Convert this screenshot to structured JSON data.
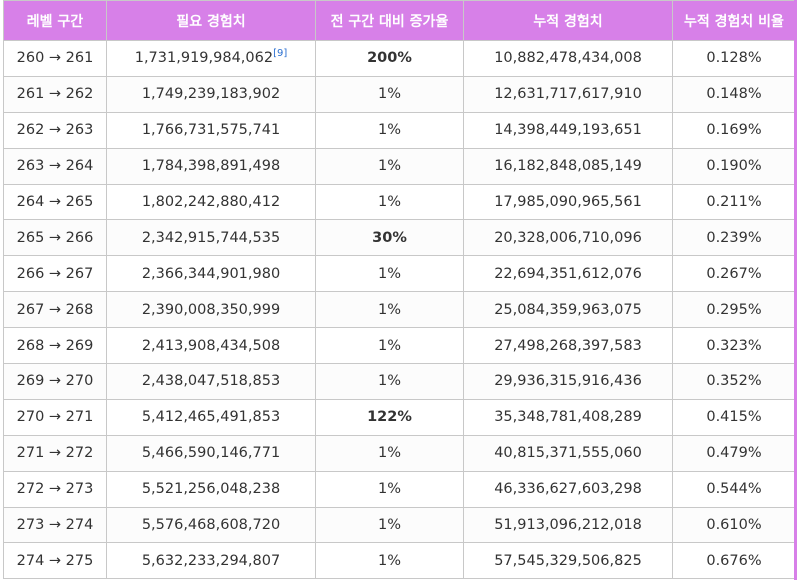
{
  "table": {
    "headers": [
      "레벨 구간",
      "필요 경험치",
      "전 구간 대비 증가율",
      "누적 경험치",
      "누적 경험치 비율"
    ],
    "rows": [
      {
        "range": "260 → 261",
        "required": "1,731,919,984,062",
        "ref": "[9]",
        "increase": "200%",
        "increase_bold": true,
        "cumulative": "10,882,478,434,008",
        "ratio": "0.128%"
      },
      {
        "range": "261 → 262",
        "required": "1,749,239,183,902",
        "ref": "",
        "increase": "1%",
        "increase_bold": false,
        "cumulative": "12,631,717,617,910",
        "ratio": "0.148%"
      },
      {
        "range": "262 → 263",
        "required": "1,766,731,575,741",
        "ref": "",
        "increase": "1%",
        "increase_bold": false,
        "cumulative": "14,398,449,193,651",
        "ratio": "0.169%"
      },
      {
        "range": "263 → 264",
        "required": "1,784,398,891,498",
        "ref": "",
        "increase": "1%",
        "increase_bold": false,
        "cumulative": "16,182,848,085,149",
        "ratio": "0.190%"
      },
      {
        "range": "264 → 265",
        "required": "1,802,242,880,412",
        "ref": "",
        "increase": "1%",
        "increase_bold": false,
        "cumulative": "17,985,090,965,561",
        "ratio": "0.211%"
      },
      {
        "range": "265 → 266",
        "required": "2,342,915,744,535",
        "ref": "",
        "increase": "30%",
        "increase_bold": true,
        "cumulative": "20,328,006,710,096",
        "ratio": "0.239%"
      },
      {
        "range": "266 → 267",
        "required": "2,366,344,901,980",
        "ref": "",
        "increase": "1%",
        "increase_bold": false,
        "cumulative": "22,694,351,612,076",
        "ratio": "0.267%"
      },
      {
        "range": "267 → 268",
        "required": "2,390,008,350,999",
        "ref": "",
        "increase": "1%",
        "increase_bold": false,
        "cumulative": "25,084,359,963,075",
        "ratio": "0.295%"
      },
      {
        "range": "268 → 269",
        "required": "2,413,908,434,508",
        "ref": "",
        "increase": "1%",
        "increase_bold": false,
        "cumulative": "27,498,268,397,583",
        "ratio": "0.323%"
      },
      {
        "range": "269 → 270",
        "required": "2,438,047,518,853",
        "ref": "",
        "increase": "1%",
        "increase_bold": false,
        "cumulative": "29,936,315,916,436",
        "ratio": "0.352%"
      },
      {
        "range": "270 → 271",
        "required": "5,412,465,491,853",
        "ref": "",
        "increase": "122%",
        "increase_bold": true,
        "cumulative": "35,348,781,408,289",
        "ratio": "0.415%"
      },
      {
        "range": "271 → 272",
        "required": "5,466,590,146,771",
        "ref": "",
        "increase": "1%",
        "increase_bold": false,
        "cumulative": "40,815,371,555,060",
        "ratio": "0.479%"
      },
      {
        "range": "272 → 273",
        "required": "5,521,256,048,238",
        "ref": "",
        "increase": "1%",
        "increase_bold": false,
        "cumulative": "46,336,627,603,298",
        "ratio": "0.544%"
      },
      {
        "range": "273 → 274",
        "required": "5,576,468,608,720",
        "ref": "",
        "increase": "1%",
        "increase_bold": false,
        "cumulative": "51,913,096,212,018",
        "ratio": "0.610%"
      },
      {
        "range": "274 → 275",
        "required": "5,632,233,294,807",
        "ref": "",
        "increase": "1%",
        "increase_bold": false,
        "cumulative": "57,545,329,506,825",
        "ratio": "0.676%"
      }
    ]
  },
  "colors": {
    "header_bg": "#d780e8",
    "header_text": "#ffffff",
    "ref_link": "#2a6fd0"
  }
}
